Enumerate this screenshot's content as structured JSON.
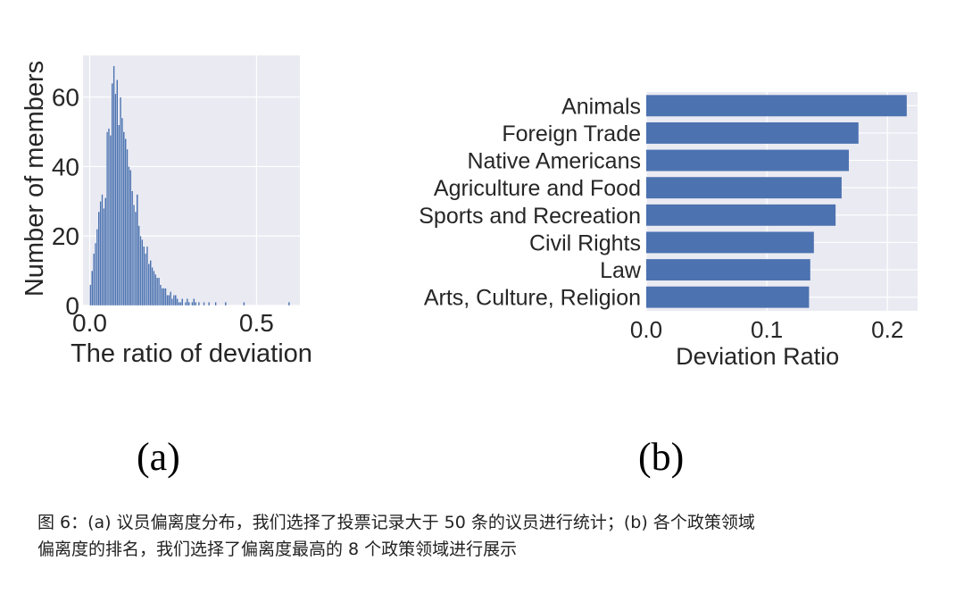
{
  "chart_data": [
    {
      "type": "bar",
      "subtype": "histogram",
      "xlabel": "The ratio of deviation",
      "ylabel": "Number of members",
      "xlim": [
        -0.02,
        0.63
      ],
      "ylim": [
        0,
        72
      ],
      "xticks": [
        0.0,
        0.5
      ],
      "xtick_labels": [
        "0.0",
        "0.5"
      ],
      "yticks": [
        0,
        20,
        40,
        60
      ],
      "ytick_labels": [
        "0",
        "20",
        "40",
        "60"
      ],
      "grid": true,
      "bin_width": 0.005,
      "bin_start": 0.0,
      "values": [
        6,
        10,
        15,
        18,
        22,
        27,
        30,
        32,
        28,
        31,
        50,
        51,
        49,
        64,
        69,
        61,
        65,
        52,
        60,
        54,
        50,
        48,
        45,
        40,
        39,
        33,
        29,
        27,
        32,
        23,
        20,
        19,
        17,
        15,
        17,
        12,
        13,
        11,
        10,
        9,
        8,
        8,
        6,
        5,
        5,
        5,
        3,
        3,
        4,
        2,
        3,
        3,
        2,
        1,
        1,
        2,
        0,
        1,
        2,
        1,
        0,
        1,
        2,
        1,
        0,
        1,
        0,
        0,
        1,
        0,
        0,
        1,
        0,
        0,
        0,
        1,
        0,
        0,
        0,
        0,
        0,
        1,
        0,
        0,
        0,
        0,
        0,
        0,
        0,
        0,
        0,
        0,
        1,
        0,
        0,
        0,
        0,
        0,
        0,
        0,
        0,
        0,
        0,
        0,
        0,
        0,
        0,
        0,
        0,
        0,
        0,
        0,
        0,
        0,
        0,
        0,
        0,
        0,
        0,
        1,
        0,
        0
      ]
    },
    {
      "type": "bar",
      "orientation": "horizontal",
      "xlabel": "Deviation Ratio",
      "xlim": [
        0,
        0.225
      ],
      "xticks": [
        0.0,
        0.1,
        0.2
      ],
      "xtick_labels": [
        "0.0",
        "0.1",
        "0.2"
      ],
      "grid": true,
      "categories": [
        "Animals",
        "Foreign Trade",
        "Native Americans",
        "Agriculture and Food",
        "Sports and Recreation",
        "Civil Rights",
        "Law",
        "Arts, Culture, Religion"
      ],
      "values": [
        0.216,
        0.176,
        0.168,
        0.162,
        0.157,
        0.139,
        0.136,
        0.135
      ]
    }
  ],
  "panel_labels": [
    "(a)",
    "(b)"
  ],
  "caption": {
    "line1": "图 6：(a) 议员偏离度分布，我们选择了投票记录大于 50 条的议员进行统计；(b) 各个政策领域",
    "line2": "偏离度的排名，我们选择了偏离度最高的 8 个政策领域进行展示"
  },
  "colors": {
    "bar": "#4c72b0",
    "plot_bg": "#eaeaf2",
    "grid": "#ffffff",
    "text": "#262626"
  }
}
